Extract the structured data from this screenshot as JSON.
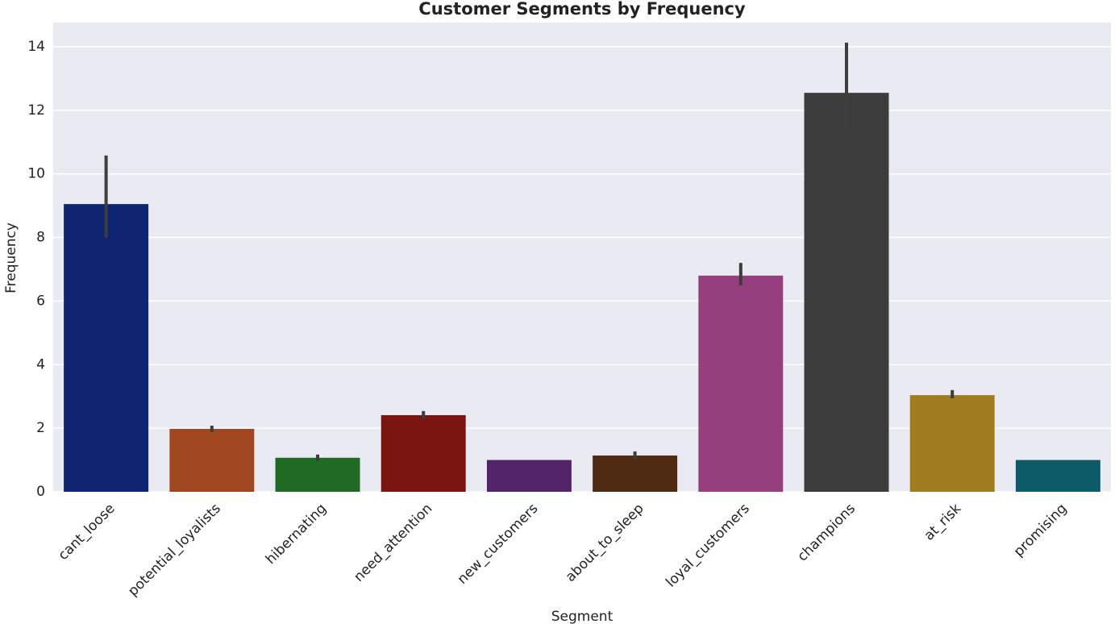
{
  "chart_data": {
    "type": "bar",
    "title": "Customer Segments by Frequency",
    "xlabel": "Segment",
    "ylabel": "Frequency",
    "categories": [
      "cant_loose",
      "potential_loyalists",
      "hibernating",
      "need_attention",
      "new_customers",
      "about_to_sleep",
      "loyal_customers",
      "champions",
      "at_risk",
      "promising"
    ],
    "values": [
      9.05,
      1.98,
      1.07,
      2.41,
      1,
      1.14,
      6.8,
      12.55,
      3.04,
      1
    ],
    "ci_low": [
      7.99,
      1.88,
      0.96,
      2.28,
      1,
      1.01,
      6.49,
      11.41,
      2.94,
      1
    ],
    "ci_high": [
      10.58,
      2.08,
      1.17,
      2.54,
      1,
      1.27,
      7.2,
      14.13,
      3.2,
      1
    ],
    "colors": [
      "#0e2471",
      "#a0471f",
      "#1f6b25",
      "#7b1510",
      "#54246a",
      "#4e2b12",
      "#963f7e",
      "#3c3c3c",
      "#a07c1f",
      "#0d5b69"
    ],
    "ylim": [
      0,
      14.76
    ],
    "yticks": [
      0,
      2,
      4,
      6,
      8,
      10,
      12,
      14
    ],
    "grid": true
  }
}
